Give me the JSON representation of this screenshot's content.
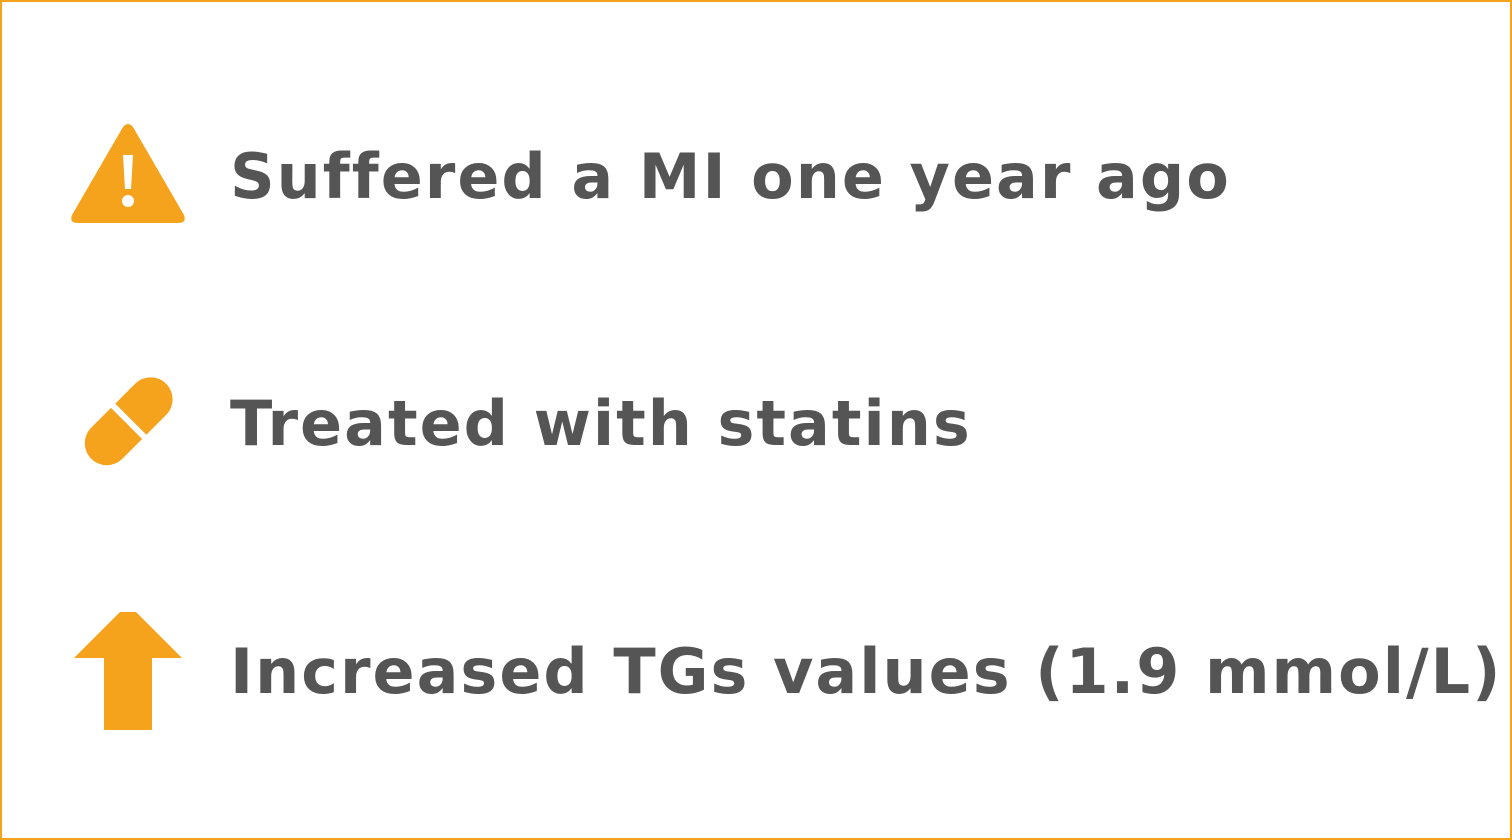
{
  "items": [
    {
      "icon": "warning",
      "text": "Suffered a MI one year ago"
    },
    {
      "icon": "pill",
      "text": "Treated with statins"
    },
    {
      "icon": "arrow-up",
      "text": "Increased TGs values (1.9 mmol/L)"
    }
  ]
}
